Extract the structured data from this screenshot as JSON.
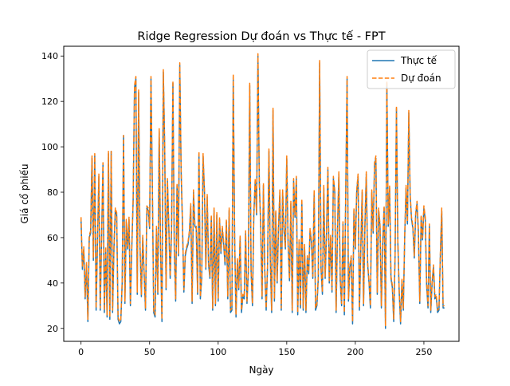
{
  "chart_data": {
    "type": "line",
    "title": "Ridge Regression Dự đoán vs Thực tế - FPT",
    "xlabel": "Ngày",
    "ylabel": "Giá cổ phiếu",
    "xlim": [
      -12.6,
      275.6
    ],
    "ylim": [
      14.3,
      144.3
    ],
    "xticks": [
      0,
      50,
      100,
      150,
      200,
      250
    ],
    "yticks": [
      20,
      40,
      60,
      80,
      100,
      120,
      140
    ],
    "grid": false,
    "legend_position": "upper right",
    "series": [
      {
        "name": "Thực tế",
        "color": "#1f77b4",
        "style": "solid",
        "values": [
          68,
          46,
          55,
          33,
          48,
          23,
          60,
          62,
          95,
          50,
          96,
          28,
          58,
          87,
          28,
          60,
          92,
          27,
          55,
          25,
          97,
          24,
          98,
          27,
          55,
          72,
          70,
          24,
          22,
          23,
          40,
          105,
          31,
          67,
          55,
          68,
          30,
          55,
          76,
          126,
          130,
          35,
          124,
          56,
          34,
          60,
          44,
          28,
          73,
          72,
          64,
          130,
          82,
          27,
          25,
          64,
          35,
          107,
          55,
          23,
          133,
          100,
          37,
          85,
          65,
          42,
          63,
          128,
          55,
          32,
          83,
          52,
          136,
          89,
          65,
          36,
          52,
          55,
          57,
          62,
          74,
          31,
          80,
          65,
          64,
          35,
          97,
          33,
          42,
          96,
          80,
          46,
          78,
          48,
          42,
          69,
          28,
          72,
          30,
          70,
          32,
          68,
          53,
          64,
          57,
          48,
          67,
          33,
          72,
          27,
          28,
          131,
          60,
          25,
          50,
          37,
          60,
          27,
          34,
          33,
          62,
          31,
          45,
          127,
          45,
          30,
          70,
          85,
          70,
          140,
          84,
          65,
          33,
          83,
          45,
          28,
          47,
          98,
          50,
          27,
          116,
          32,
          71,
          40,
          64,
          80,
          28,
          80,
          63,
          55,
          95,
          57,
          41,
          75,
          27,
          85,
          69,
          86,
          26,
          58,
          29,
          76,
          28,
          56,
          27,
          51,
          44,
          63,
          58,
          42,
          80,
          28,
          30,
          42,
          137,
          46,
          35,
          82,
          42,
          62,
          90,
          40,
          60,
          36,
          86,
          80,
          27,
          63,
          88,
          41,
          30,
          66,
          26,
          79,
          130,
          32,
          47,
          51,
          22,
          72,
          55,
          80,
          87,
          28,
          55,
          80,
          30,
          65,
          88,
          48,
          40,
          29,
          80,
          62,
          92,
          95,
          35,
          72,
          65,
          29,
          58,
          73,
          20,
          128,
          65,
          82,
          42,
          38,
          23,
          52,
          117,
          58,
          36,
          22,
          41,
          28,
          60,
          82,
          66,
          115,
          78,
          68,
          64,
          51,
          70,
          75,
          62,
          31,
          69,
          59,
          73,
          68,
          39,
          29,
          65,
          27,
          40,
          47,
          33,
          34,
          27,
          28,
          52,
          72,
          29,
          29
        ]
      },
      {
        "name": "Dự đoán",
        "color": "#ff7f0e",
        "style": "dashed",
        "values": [
          69,
          47,
          56,
          34,
          49,
          24,
          61,
          63,
          96,
          51,
          97,
          29,
          59,
          88,
          29,
          61,
          93,
          28,
          56,
          26,
          98,
          25,
          98,
          28,
          56,
          73,
          71,
          25,
          23,
          24,
          41,
          105,
          32,
          68,
          56,
          69,
          31,
          56,
          77,
          127,
          131,
          36,
          125,
          57,
          35,
          61,
          45,
          29,
          74,
          73,
          65,
          131,
          83,
          28,
          26,
          65,
          36,
          108,
          56,
          24,
          134,
          101,
          38,
          86,
          66,
          43,
          64,
          129,
          56,
          33,
          84,
          53,
          137,
          90,
          66,
          37,
          53,
          56,
          58,
          63,
          75,
          32,
          81,
          66,
          65,
          36,
          98,
          34,
          43,
          97,
          81,
          47,
          79,
          49,
          43,
          70,
          29,
          73,
          31,
          71,
          33,
          69,
          54,
          65,
          58,
          49,
          68,
          34,
          73,
          28,
          29,
          132,
          61,
          26,
          51,
          38,
          61,
          28,
          35,
          34,
          63,
          32,
          46,
          128,
          46,
          31,
          71,
          86,
          71,
          141,
          85,
          66,
          34,
          84,
          46,
          29,
          48,
          99,
          51,
          28,
          117,
          33,
          72,
          41,
          65,
          81,
          29,
          81,
          64,
          56,
          96,
          58,
          42,
          76,
          28,
          86,
          70,
          87,
          27,
          59,
          30,
          77,
          29,
          57,
          28,
          52,
          45,
          64,
          59,
          43,
          81,
          29,
          31,
          43,
          138,
          47,
          36,
          83,
          43,
          63,
          91,
          41,
          61,
          37,
          87,
          81,
          28,
          64,
          89,
          42,
          31,
          67,
          27,
          80,
          131,
          33,
          48,
          52,
          23,
          73,
          56,
          81,
          88,
          29,
          56,
          81,
          31,
          66,
          89,
          49,
          41,
          30,
          81,
          63,
          93,
          96,
          36,
          73,
          66,
          30,
          59,
          74,
          21,
          129,
          66,
          83,
          43,
          39,
          24,
          53,
          118,
          59,
          37,
          23,
          42,
          29,
          61,
          83,
          67,
          116,
          79,
          69,
          65,
          52,
          71,
          76,
          63,
          32,
          70,
          60,
          74,
          69,
          40,
          30,
          66,
          28,
          41,
          48,
          34,
          35,
          28,
          29,
          53,
          73,
          30,
          30
        ]
      }
    ]
  }
}
